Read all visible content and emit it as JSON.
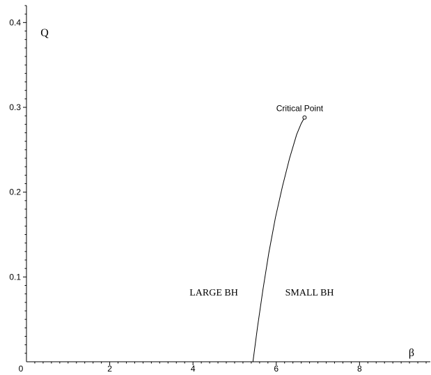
{
  "chart_data": {
    "type": "line",
    "title": "",
    "xlabel": "β",
    "ylabel": "Q",
    "xlim": [
      0,
      9.7
    ],
    "ylim": [
      0,
      0.42
    ],
    "grid": false,
    "x_ticks": [
      0,
      2,
      4,
      6,
      8
    ],
    "x_tick_labels": [
      "0",
      "2",
      "4",
      "6",
      "8"
    ],
    "y_ticks": [
      0.1,
      0.2,
      0.3,
      0.4
    ],
    "y_tick_labels": [
      "0.1",
      "0.2",
      "0.3",
      "0.4"
    ],
    "series": [
      {
        "color": "#000000",
        "x": [
          5.44,
          5.55,
          5.68,
          5.82,
          5.98,
          6.15,
          6.32,
          6.49,
          6.6,
          6.68
        ],
        "y": [
          0.0,
          0.041,
          0.085,
          0.128,
          0.17,
          0.207,
          0.24,
          0.268,
          0.281,
          0.288
        ]
      }
    ],
    "annotations": [
      {
        "text": "Critical Point",
        "x": 6.68,
        "y": 0.288,
        "marker": "open-circle"
      },
      {
        "text": "LARGE BH",
        "x": 4.5,
        "y": 0.078
      },
      {
        "text": "SMALL BH",
        "x": 6.8,
        "y": 0.078
      }
    ]
  }
}
